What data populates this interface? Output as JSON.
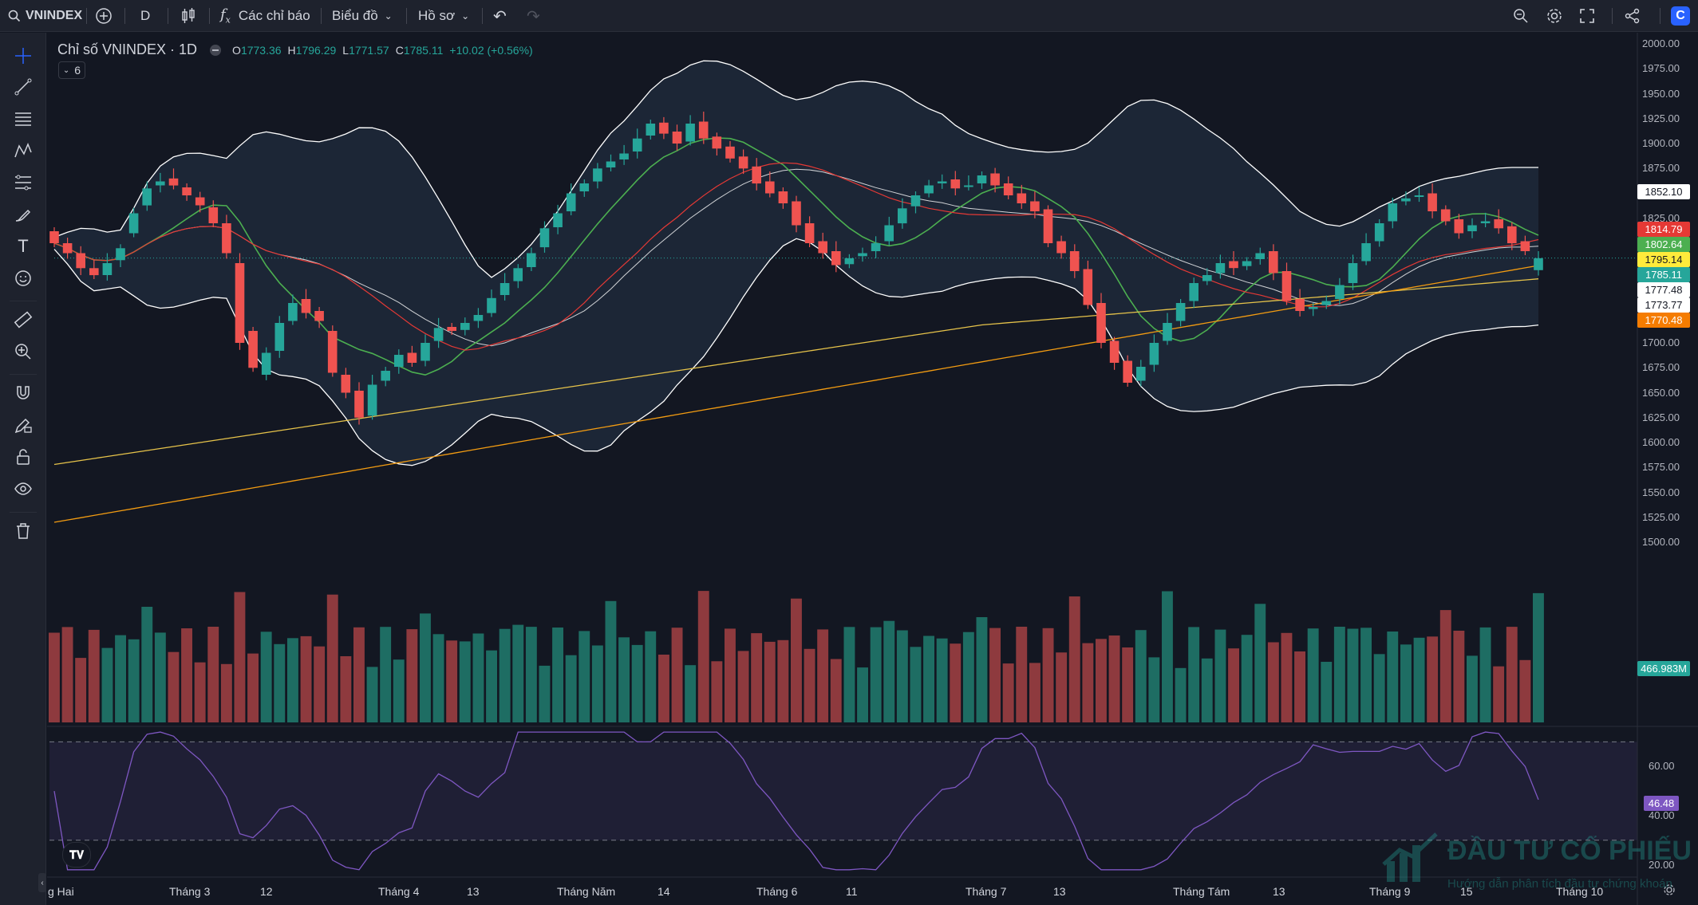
{
  "toolbar": {
    "symbol": "VNINDEX",
    "interval": "D",
    "indicators_label": "Các chỉ báo",
    "chart_label": "Biểu đồ",
    "profile_label": "Hồ sơ"
  },
  "legend": {
    "title": "Chỉ số VNINDEX · 1D",
    "open_key": "O",
    "open": "1773.36",
    "high_key": "H",
    "high": "1796.29",
    "low_key": "L",
    "low": "1771.57",
    "close_key": "C",
    "close": "1785.11",
    "change": "+10.02 (+0.56%)",
    "collapsed_count": "6"
  },
  "colors": {
    "up": "#26a69a",
    "down": "#ef5350",
    "bollinger": "#ffffff",
    "ma_green": "#4caf50",
    "ma_red": "#e53935",
    "ma_yellow": "#e6c34a",
    "ma_orange": "#f39c12",
    "rsi": "#7e57c2",
    "background": "#131722"
  },
  "price_axis": [
    "2000.00",
    "1975.00",
    "1950.00",
    "1925.00",
    "1900.00",
    "1875.00",
    "1850.00",
    "1825.00",
    "1800.00",
    "1775.00",
    "1750.00",
    "1725.00",
    "1700.00",
    "1675.00",
    "1650.00",
    "1625.00",
    "1600.00",
    "1575.00",
    "1550.00",
    "1525.00",
    "1500.00"
  ],
  "rsi_axis": [
    "60.00",
    "40.00",
    "20.00"
  ],
  "time_axis": [
    "g Hai",
    "Tháng 3",
    "12",
    "Tháng 4",
    "13",
    "Tháng Năm",
    "14",
    "Tháng 6",
    "11",
    "Tháng 7",
    "13",
    "Tháng Tám",
    "13",
    "Tháng 9",
    "15",
    "Tháng 10"
  ],
  "price_labels": [
    {
      "value": "1852.10",
      "bg": "#ffffff",
      "fg": "#131722"
    },
    {
      "value": "1814.79",
      "bg": "#e53935",
      "fg": "#ffffff"
    },
    {
      "value": "1802.64",
      "bg": "#4caf50",
      "fg": "#ffffff"
    },
    {
      "value": "1795.14",
      "bg": "#ffeb3b",
      "fg": "#131722"
    },
    {
      "value": "1785.11",
      "bg": "#26a69a",
      "fg": "#ffffff"
    },
    {
      "value": "1777.48",
      "bg": "#ffffff",
      "fg": "#131722"
    },
    {
      "value": "1773.77",
      "bg": "#ffffff",
      "fg": "#131722"
    },
    {
      "value": "1770.48",
      "bg": "#f57c00",
      "fg": "#ffffff"
    }
  ],
  "volume_label": "466.983M",
  "rsi_value": "46.48",
  "watermark": {
    "title": "ĐẦU TƯ CỔ PHIẾU",
    "subtitle": "Hướng dẫn phân tích đầu tư chứng khoán"
  },
  "chart_data": {
    "type": "candlestick",
    "symbol": "VNINDEX",
    "interval": "1D",
    "last_bar": {
      "open": 1773.36,
      "high": 1796.29,
      "low": 1771.57,
      "close": 1785.11,
      "change": 10.02,
      "change_pct": 0.56
    },
    "ylim": [
      1490,
      2005
    ],
    "rsi_ylim": [
      15,
      75
    ],
    "rsi_levels": [
      70,
      30
    ],
    "closes": [
      1800,
      1790,
      1775,
      1768,
      1780,
      1795,
      1830,
      1855,
      1862,
      1858,
      1848,
      1838,
      1820,
      1790,
      1700,
      1675,
      1690,
      1720,
      1740,
      1730,
      1722,
      1670,
      1650,
      1625,
      1658,
      1672,
      1688,
      1680,
      1700,
      1715,
      1712,
      1720,
      1728,
      1745,
      1760,
      1775,
      1790,
      1815,
      1830,
      1850,
      1860,
      1875,
      1882,
      1890,
      1905,
      1920,
      1910,
      1900,
      1920,
      1905,
      1895,
      1885,
      1875,
      1860,
      1850,
      1840,
      1818,
      1800,
      1790,
      1778,
      1785,
      1790,
      1800,
      1818,
      1835,
      1848,
      1858,
      1862,
      1855,
      1858,
      1868,
      1858,
      1848,
      1840,
      1832,
      1800,
      1790,
      1772,
      1738,
      1700,
      1680,
      1660,
      1676,
      1700,
      1720,
      1740,
      1760,
      1768,
      1780,
      1775,
      1782,
      1790,
      1770,
      1742,
      1732,
      1736,
      1742,
      1758,
      1780,
      1800,
      1820,
      1840,
      1845,
      1848,
      1832,
      1822,
      1810,
      1818,
      1822,
      1815,
      1800,
      1792,
      1785
    ],
    "opens": [
      1812,
      1800,
      1790,
      1775,
      1768,
      1783,
      1810,
      1838,
      1858,
      1865,
      1856,
      1846,
      1836,
      1820,
      1780,
      1712,
      1668,
      1692,
      1722,
      1744,
      1732,
      1712,
      1668,
      1652,
      1627,
      1662,
      1676,
      1690,
      1682,
      1702,
      1716,
      1713,
      1722,
      1730,
      1748,
      1762,
      1776,
      1796,
      1816,
      1832,
      1852,
      1862,
      1876,
      1884,
      1892,
      1908,
      1921,
      1912,
      1902,
      1922,
      1907,
      1897,
      1887,
      1877,
      1862,
      1852,
      1842,
      1820,
      1802,
      1792,
      1779,
      1787,
      1792,
      1802,
      1820,
      1837,
      1850,
      1860,
      1864,
      1857,
      1860,
      1870,
      1860,
      1850,
      1842,
      1834,
      1802,
      1792,
      1774,
      1740,
      1702,
      1682,
      1662,
      1678,
      1702,
      1722,
      1742,
      1762,
      1770,
      1782,
      1777,
      1784,
      1792,
      1772,
      1744,
      1734,
      1738,
      1744,
      1760,
      1782,
      1802,
      1822,
      1842,
      1847,
      1850,
      1834,
      1824,
      1812,
      1820,
      1824,
      1817,
      1802,
      1773
    ],
    "volume_unit": "M",
    "last_volume": 466.983,
    "rsi_last": 46.48,
    "series_lines": [
      "Bollinger upper",
      "Bollinger middle",
      "Bollinger lower",
      "MA green",
      "MA red",
      "MA yellow",
      "MA orange"
    ]
  }
}
